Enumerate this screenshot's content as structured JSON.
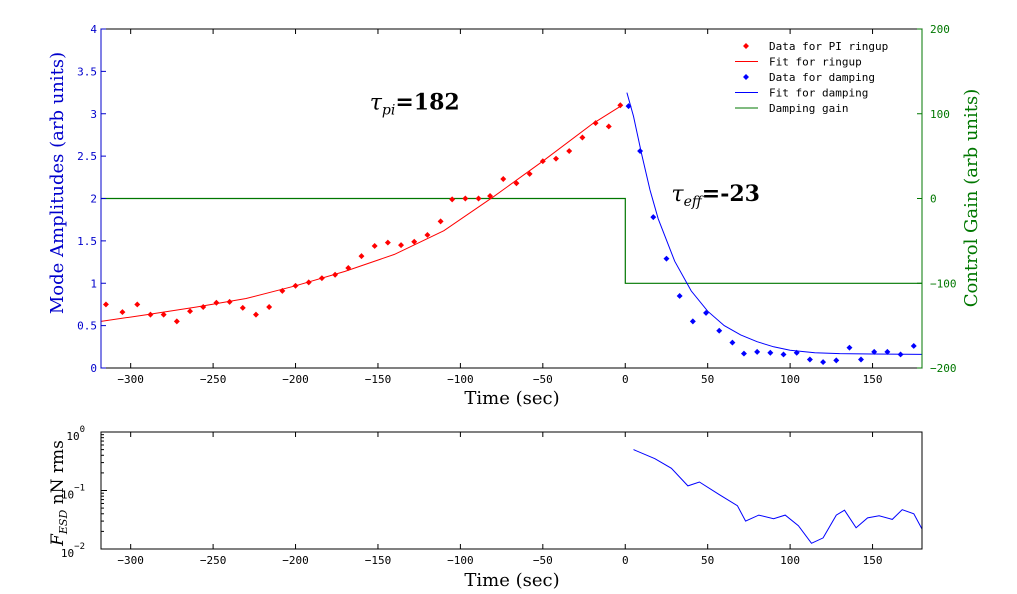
{
  "chart_data": [
    {
      "type": "scatter",
      "xlabel": "Time (sec)",
      "ylabel": "Mode Amplitudes (arb units)",
      "y2label": "Control Gain (arb units)",
      "xlim": [
        -318,
        180
      ],
      "ylim": [
        0,
        4
      ],
      "y2lim": [
        -200,
        200
      ],
      "xticks": [
        -300,
        -250,
        -200,
        -150,
        -100,
        -50,
        0,
        50,
        100,
        150
      ],
      "yticks": [
        0,
        0.5,
        1,
        1.5,
        2,
        2.5,
        3,
        3.5,
        4
      ],
      "y2ticks": [
        -200,
        -100,
        0,
        100,
        200
      ],
      "colors": {
        "ringup": "#ff0000",
        "damping": "#0000ff",
        "gain": "#007700",
        "left_axis": "#0000cc",
        "right_axis": "#007700"
      },
      "annotations": [
        {
          "text": "=182",
          "symbol": "τ",
          "sub": "pi",
          "at_time": -155,
          "at_amp": 3.05
        },
        {
          "text": "=-23",
          "symbol": "τ",
          "sub": "eff",
          "at_time": 28,
          "at_amp": 1.97
        }
      ],
      "legend": {
        "placement": "top-right",
        "items": [
          {
            "label": "Data for PI ringup",
            "style": "marker",
            "color": "#ff0000"
          },
          {
            "label": "Fit for ringup",
            "style": "line",
            "color": "#ff0000"
          },
          {
            "label": "Data for damping",
            "style": "marker",
            "color": "#0000ff"
          },
          {
            "label": "Fit for damping",
            "style": "line",
            "color": "#0000ff"
          },
          {
            "label": "Damping gain",
            "style": "line",
            "color": "#007700"
          }
        ]
      },
      "series": [
        {
          "name": "Data for PI ringup",
          "kind": "scatter",
          "color": "#ff0000",
          "points": [
            [
              -315,
              0.75
            ],
            [
              -305,
              0.66
            ],
            [
              -296,
              0.75
            ],
            [
              -288,
              0.63
            ],
            [
              -280,
              0.63
            ],
            [
              -272,
              0.55
            ],
            [
              -264,
              0.67
            ],
            [
              -256,
              0.72
            ],
            [
              -248,
              0.77
            ],
            [
              -240,
              0.78
            ],
            [
              -232,
              0.71
            ],
            [
              -224,
              0.63
            ],
            [
              -216,
              0.72
            ],
            [
              -208,
              0.91
            ],
            [
              -200,
              0.97
            ],
            [
              -192,
              1.01
            ],
            [
              -184,
              1.06
            ],
            [
              -176,
              1.1
            ],
            [
              -168,
              1.18
            ],
            [
              -160,
              1.32
            ],
            [
              -152,
              1.44
            ],
            [
              -144,
              1.48
            ],
            [
              -136,
              1.45
            ],
            [
              -128,
              1.49
            ],
            [
              -120,
              1.57
            ],
            [
              -112,
              1.73
            ],
            [
              -105,
              1.99
            ],
            [
              -97,
              2.0
            ],
            [
              -89,
              2.0
            ],
            [
              -82,
              2.03
            ],
            [
              -74,
              2.23
            ],
            [
              -66,
              2.18
            ],
            [
              -58,
              2.29
            ],
            [
              -50,
              2.44
            ],
            [
              -42,
              2.47
            ],
            [
              -34,
              2.56
            ],
            [
              -26,
              2.72
            ],
            [
              -18,
              2.89
            ],
            [
              -10,
              2.85
            ],
            [
              -3,
              3.1
            ]
          ]
        },
        {
          "name": "Fit for ringup",
          "kind": "line",
          "color": "#ff0000",
          "points": [
            [
              -318,
              0.55
            ],
            [
              -290,
              0.63
            ],
            [
              -260,
              0.72
            ],
            [
              -230,
              0.82
            ],
            [
              -200,
              0.97
            ],
            [
              -170,
              1.14
            ],
            [
              -140,
              1.34
            ],
            [
              -110,
              1.62
            ],
            [
              -80,
              2.02
            ],
            [
              -50,
              2.44
            ],
            [
              -20,
              2.88
            ],
            [
              -2,
              3.1
            ]
          ]
        },
        {
          "name": "Data for damping",
          "kind": "scatter",
          "color": "#0000ff",
          "points": [
            [
              2,
              3.09
            ],
            [
              9,
              2.56
            ],
            [
              17,
              1.78
            ],
            [
              25,
              1.29
            ],
            [
              33,
              0.85
            ],
            [
              41,
              0.55
            ],
            [
              49,
              0.65
            ],
            [
              57,
              0.44
            ],
            [
              65,
              0.3
            ],
            [
              72,
              0.17
            ],
            [
              80,
              0.19
            ],
            [
              88,
              0.18
            ],
            [
              96,
              0.16
            ],
            [
              104,
              0.18
            ],
            [
              112,
              0.1
            ],
            [
              120,
              0.07
            ],
            [
              128,
              0.09
            ],
            [
              136,
              0.24
            ],
            [
              143,
              0.1
            ],
            [
              151,
              0.19
            ],
            [
              159,
              0.19
            ],
            [
              167,
              0.16
            ],
            [
              175,
              0.26
            ]
          ]
        },
        {
          "name": "Fit for damping",
          "kind": "line",
          "color": "#0000ff",
          "points": [
            [
              1,
              3.25
            ],
            [
              5,
              2.97
            ],
            [
              10,
              2.52
            ],
            [
              15,
              2.1
            ],
            [
              20,
              1.76
            ],
            [
              30,
              1.26
            ],
            [
              40,
              0.91
            ],
            [
              50,
              0.67
            ],
            [
              60,
              0.5
            ],
            [
              70,
              0.39
            ],
            [
              80,
              0.31
            ],
            [
              90,
              0.25
            ],
            [
              100,
              0.21
            ],
            [
              115,
              0.18
            ],
            [
              130,
              0.17
            ],
            [
              150,
              0.165
            ],
            [
              180,
              0.16
            ]
          ]
        },
        {
          "name": "Damping gain",
          "kind": "step",
          "axis": "right",
          "color": "#007700",
          "points": [
            [
              -318,
              0
            ],
            [
              0,
              0
            ],
            [
              0,
              -100
            ],
            [
              180,
              -100
            ]
          ]
        }
      ]
    },
    {
      "type": "line",
      "xlabel": "Time (sec)",
      "ylabel": "F_ESD nN rms",
      "ylabel_main": "F",
      "ylabel_sub": "ESD",
      "ylabel_rest": " nN rms",
      "yscale": "log",
      "xlim": [
        -318,
        180
      ],
      "ylim": [
        0.01,
        1
      ],
      "xticks": [
        -300,
        -250,
        -200,
        -150,
        -100,
        -50,
        0,
        50,
        100,
        150
      ],
      "yticks": [
        {
          "value": 1,
          "base": "10",
          "exp": "0"
        },
        {
          "value": 0.1,
          "base": "10",
          "exp": "−1"
        },
        {
          "value": 0.01,
          "base": "10",
          "exp": "−2"
        }
      ],
      "series": [
        {
          "color": "#0000ff",
          "points": [
            [
              5,
              0.5
            ],
            [
              18,
              0.35
            ],
            [
              28,
              0.24
            ],
            [
              38,
              0.12
            ],
            [
              45,
              0.14
            ],
            [
              57,
              0.085
            ],
            [
              68,
              0.055
            ],
            [
              73,
              0.03
            ],
            [
              81,
              0.038
            ],
            [
              90,
              0.033
            ],
            [
              97,
              0.038
            ],
            [
              105,
              0.025
            ],
            [
              113,
              0.0125
            ],
            [
              120,
              0.0155
            ],
            [
              128,
              0.038
            ],
            [
              133,
              0.046
            ],
            [
              140,
              0.023
            ],
            [
              147,
              0.034
            ],
            [
              154,
              0.037
            ],
            [
              162,
              0.032
            ],
            [
              168,
              0.047
            ],
            [
              175,
              0.04
            ],
            [
              180,
              0.022
            ]
          ]
        }
      ]
    }
  ]
}
